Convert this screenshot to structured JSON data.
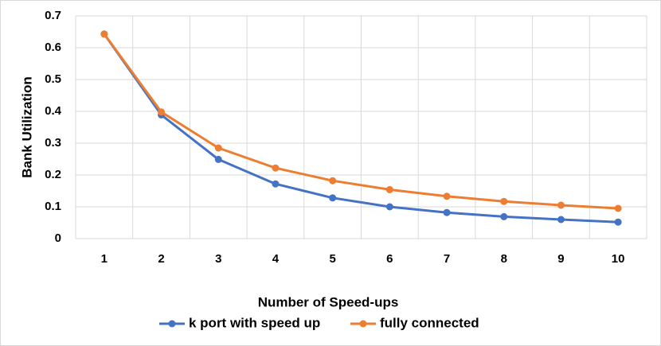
{
  "chart_data": {
    "type": "line",
    "x_label": "Number of Speed-ups",
    "y_label": "Bank Utilization",
    "categories": [
      "1",
      "2",
      "3",
      "4",
      "5",
      "6",
      "7",
      "8",
      "9",
      "10"
    ],
    "series": [
      {
        "name": "k port with speed up",
        "color": "#4472c4",
        "values": [
          0.643,
          0.389,
          0.249,
          0.172,
          0.128,
          0.1,
          0.082,
          0.069,
          0.06,
          0.052
        ]
      },
      {
        "name": "fully connected",
        "color": "#ed7d31",
        "values": [
          0.643,
          0.398,
          0.285,
          0.222,
          0.182,
          0.154,
          0.133,
          0.117,
          0.105,
          0.095
        ]
      }
    ],
    "ylim": [
      0,
      0.7
    ],
    "yticks": [
      0,
      0.1,
      0.2,
      0.3,
      0.4,
      0.5,
      0.6,
      0.7
    ],
    "grid": true,
    "legend": "bottom"
  }
}
